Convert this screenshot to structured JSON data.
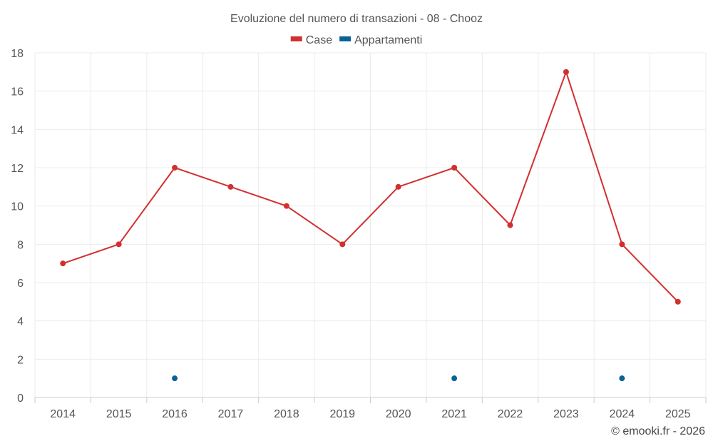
{
  "chart_data": {
    "type": "line",
    "title": "Evoluzione del numero di transazioni - 08 - Chooz",
    "xlabel": "",
    "ylabel": "",
    "categories": [
      "2014",
      "2015",
      "2016",
      "2017",
      "2018",
      "2019",
      "2020",
      "2021",
      "2022",
      "2023",
      "2024",
      "2025"
    ],
    "ylim": [
      0,
      18
    ],
    "yticks": [
      0,
      2,
      4,
      6,
      8,
      10,
      12,
      14,
      16,
      18
    ],
    "grid": true,
    "legend_position": "top-center",
    "series": [
      {
        "name": "Case",
        "color": "#d32f2f",
        "line": true,
        "values": [
          7,
          8,
          12,
          11,
          10,
          8,
          11,
          12,
          9,
          17,
          8,
          5
        ]
      },
      {
        "name": "Appartamenti",
        "color": "#0a6299",
        "line": false,
        "values": [
          null,
          null,
          1,
          null,
          null,
          null,
          null,
          1,
          null,
          null,
          1,
          null
        ]
      }
    ]
  },
  "credit": "© emooki.fr - 2026"
}
